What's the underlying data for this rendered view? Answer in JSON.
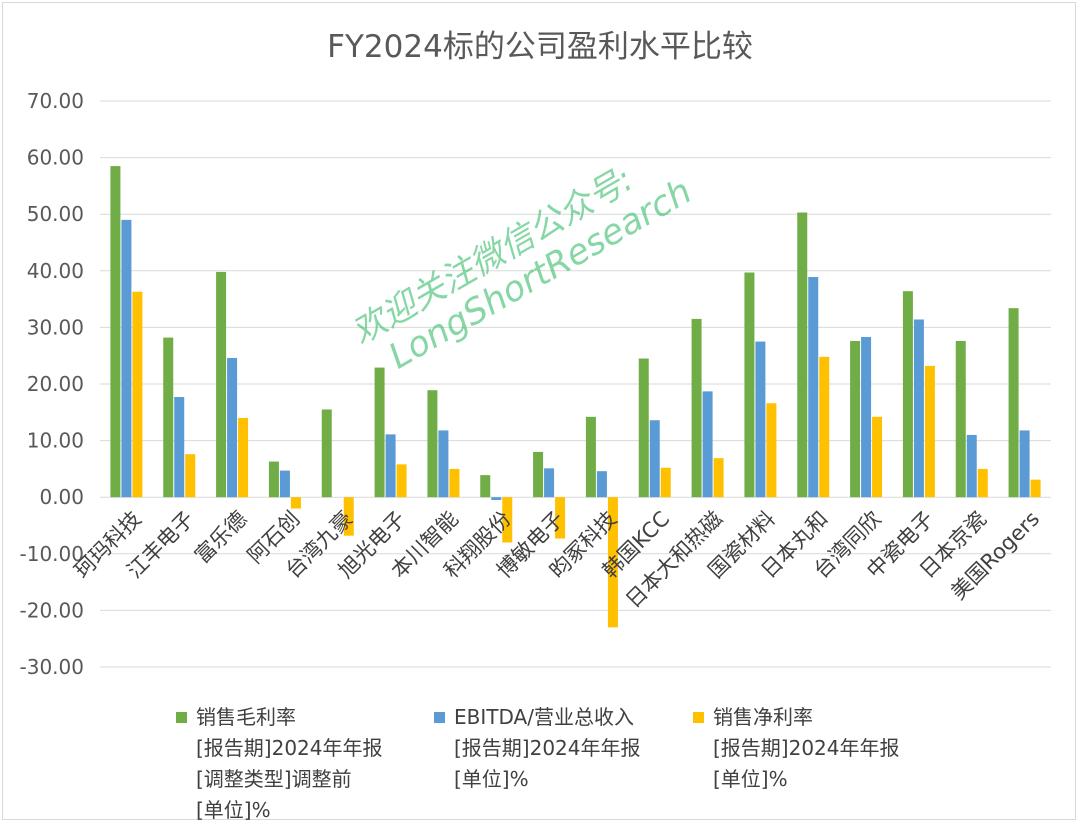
{
  "chart_data": {
    "type": "bar",
    "title": "FY2024标的公司盈利水平比较",
    "categories": [
      "珂玛科技",
      "江丰电子",
      "富乐德",
      "阿石创",
      "台湾九豪",
      "旭光电子",
      "本川智能",
      "科翔股份",
      "博敏电子",
      "昀冢科技",
      "韩国KCC",
      "日本大和热磁",
      "国瓷材料",
      "日本丸和",
      "台湾同欣",
      "中瓷电子",
      "日本京瓷",
      "美国Rogers"
    ],
    "series": [
      {
        "name": "销售毛利率\n[报告期]2024年年报\n[调整类型]调整前\n[单位]%",
        "color": "#70ad47",
        "values": [
          58.5,
          28.2,
          39.8,
          6.3,
          15.5,
          22.9,
          18.9,
          3.9,
          8.0,
          14.2,
          24.5,
          31.5,
          39.7,
          50.3,
          27.6,
          36.4,
          27.6,
          33.4
        ]
      },
      {
        "name": "EBITDA/营业总收入\n[报告期]2024年年报\n[单位]%",
        "color": "#5b9bd5",
        "values": [
          49.0,
          17.7,
          24.6,
          4.7,
          0,
          11.1,
          11.8,
          -0.5,
          5.1,
          4.6,
          13.6,
          18.7,
          27.5,
          38.9,
          28.3,
          31.4,
          11.0,
          11.8
        ]
      },
      {
        "name": "销售净利率\n[报告期]2024年年报\n[单位]%",
        "color": "#ffc000",
        "values": [
          36.3,
          7.6,
          14.0,
          -2.0,
          -6.8,
          5.8,
          5.0,
          -8.0,
          -7.3,
          -23.0,
          5.2,
          6.9,
          16.6,
          24.8,
          14.2,
          23.2,
          5.0,
          3.1
        ]
      }
    ],
    "ylim": [
      -30,
      70
    ],
    "ytick_step": 10,
    "ytick_labels": [
      "70.00",
      "60.00",
      "50.00",
      "40.00",
      "30.00",
      "20.00",
      "10.00",
      "0.00",
      "-10.00",
      "-20.00",
      "-30.00"
    ],
    "grid": true,
    "legend_position": "bottom"
  },
  "watermark": {
    "line1": "欢迎关注微信公众号:",
    "line2": "LongShortResearch"
  }
}
